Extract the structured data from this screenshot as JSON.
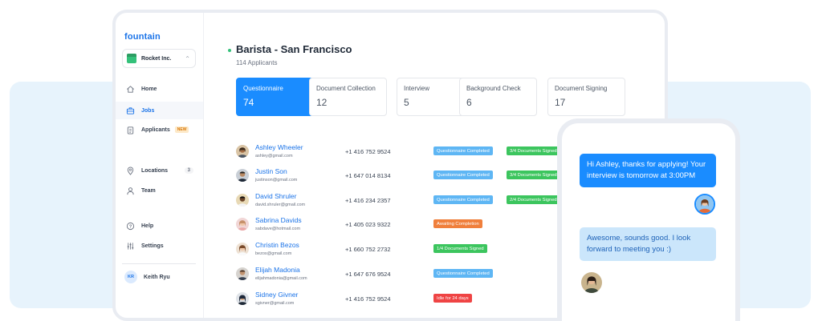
{
  "app": {
    "logo": "fountain"
  },
  "company": {
    "name": "Rocket Inc."
  },
  "nav": {
    "home": "Home",
    "jobs": "Jobs",
    "applicants": "Applicants",
    "applicants_badge": "NEW",
    "locations": "Locations",
    "locations_count": "3",
    "team": "Team",
    "help": "Help",
    "settings": "Settings"
  },
  "user": {
    "initials": "KR",
    "name": "Keith Ryu"
  },
  "job": {
    "title": "Barista - San Francisco",
    "applicants": "114 Applicants"
  },
  "stages": [
    {
      "name": "Questionnaire",
      "count": "74"
    },
    {
      "name": "Document Collection",
      "count": "12"
    },
    {
      "name": "Interview",
      "count": "5"
    },
    {
      "name": "Background Check",
      "count": "6"
    },
    {
      "name": "Document Signing",
      "count": "17"
    }
  ],
  "applicants": [
    {
      "name": "Ashley Wheeler",
      "email": "ashley@gmail.com",
      "phone": "+1 416 752 9524",
      "tag1": "Questionnaire Completed",
      "tag2": "3/4 Documents Signed"
    },
    {
      "name": "Justin Son",
      "email": "justinson@gmail.com",
      "phone": "+1 647 014 8134",
      "tag1": "Questionnaire Completed",
      "tag2": "3/4 Documents Signed"
    },
    {
      "name": "David Shruler",
      "email": "david.shruler@gmail.com",
      "phone": "+1 416 234 2357",
      "tag1": "Questionnaire Completed",
      "tag2": "2/4 Documents Signed"
    },
    {
      "name": "Sabrina Davids",
      "email": "sabdave@hotmail.com",
      "phone": "+1 405 023 9322",
      "tag1": "Awaiting Completion"
    },
    {
      "name": "Christin Bezos",
      "email": "bezos@gmail.com",
      "phone": "+1 660 752 2732",
      "tag1": "1/4 Documents Signed"
    },
    {
      "name": "Elijah Madonia",
      "email": "elijahmadonia@gmail.com",
      "phone": "+1 647 676 9524",
      "tag1": "Questionnaire Completed"
    },
    {
      "name": "Sidney Givner",
      "email": "sgivner@gmail.com",
      "phone": "+1 416 752 9524",
      "tag1": "Idle for 24 days"
    }
  ],
  "chat": {
    "sent": "Hi Ashley, thanks for applying! Your interview is tomorrow at 3:00PM",
    "received": "Awesome, sounds good. I look forward to meeting you :)"
  },
  "colors": {
    "accent": "#1a8cff",
    "brand": "#1a73e8",
    "tag_blue": "#5eb6f4",
    "tag_green": "#3cc55e",
    "tag_orange": "#f07f3c",
    "tag_red": "#ef4444",
    "background_panel": "#e7f3fc"
  }
}
